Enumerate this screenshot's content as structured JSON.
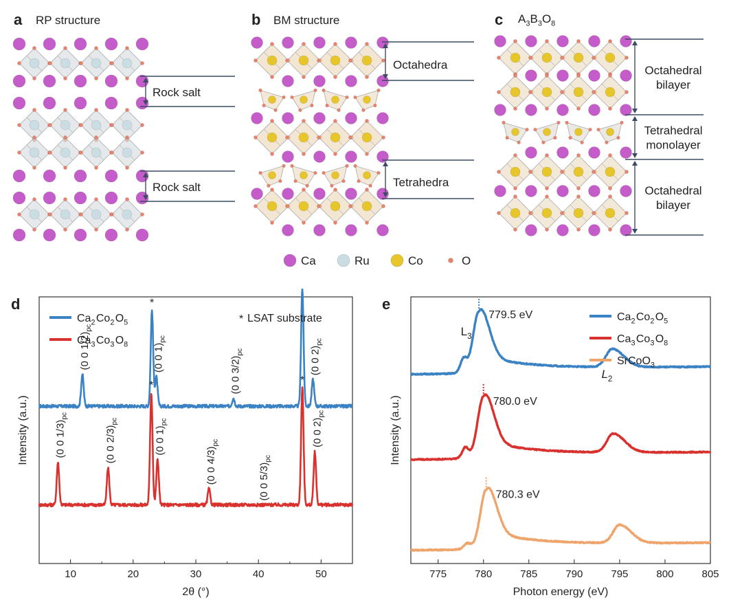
{
  "panels": {
    "a": {
      "label": "a",
      "title": "RP structure",
      "annotations": [
        "Rock salt",
        "Rock salt"
      ]
    },
    "b": {
      "label": "b",
      "title": "BM structure",
      "annotations": [
        "Octahedra",
        "Tetrahedra"
      ]
    },
    "c": {
      "label": "c",
      "title_parts": [
        "A",
        "3",
        "B",
        "3",
        "O",
        "8"
      ],
      "annotations": [
        [
          "Octahedral",
          "bilayer"
        ],
        [
          "Tetrahedral",
          "monolayer"
        ],
        [
          "Octahedral",
          "bilayer"
        ]
      ]
    },
    "d": {
      "label": "d"
    },
    "e": {
      "label": "e"
    }
  },
  "atom_legend": [
    {
      "name": "Ca",
      "color": "#c45dc9"
    },
    {
      "name": "Ru",
      "color": "#c9dde3"
    },
    {
      "name": "Co",
      "color": "#e7c62c"
    },
    {
      "name": "O",
      "color": "#e8836e"
    }
  ],
  "chart_data": [
    {
      "type": "line",
      "panel": "d",
      "xlabel": "2θ (°)",
      "ylabel": "Intensity (a.u.)",
      "xlim": [
        5,
        55
      ],
      "xticks": [
        10,
        20,
        30,
        40,
        50
      ],
      "legend": [
        {
          "name": [
            "Ca",
            "2",
            "Co",
            "2",
            "O",
            "5"
          ],
          "color": "#3b82c4"
        },
        {
          "name": [
            "Ca",
            "3",
            "Co",
            "3",
            "O",
            "8"
          ],
          "color": "#d9322e"
        }
      ],
      "legend_note": "LSAT substrate",
      "series": [
        {
          "name": "Ca2Co2O5",
          "color": "#3b82c4",
          "baseline": 0.59,
          "peaks": [
            [
              11.9,
              0.12
            ],
            [
              23.0,
              0.36
            ],
            [
              23.7,
              0.11
            ],
            [
              36.0,
              0.03
            ],
            [
              47.0,
              0.44
            ],
            [
              48.7,
              0.1
            ]
          ],
          "annotations": [
            {
              "x": 11.9,
              "text": [
                "(0 0 1/2)",
                "pc"
              ]
            },
            {
              "x": 23.7,
              "text": [
                "(0 0 1)",
                "pc"
              ]
            },
            {
              "x": 36.0,
              "text": [
                "(0 0 3/2)",
                "pc"
              ]
            },
            {
              "x": 48.7,
              "text": [
                "(0 0 2)",
                "pc"
              ]
            }
          ],
          "stars": [
            23.0,
            47.0
          ]
        },
        {
          "name": "Ca3Co3O8",
          "color": "#d9322e",
          "baseline": 0.22,
          "peaks": [
            [
              8.0,
              0.16
            ],
            [
              16.0,
              0.14
            ],
            [
              22.9,
              0.42
            ],
            [
              23.9,
              0.17
            ],
            [
              32.1,
              0.06
            ],
            [
              47.0,
              0.44
            ],
            [
              49.0,
              0.2
            ]
          ],
          "annotations": [
            {
              "x": 8.0,
              "text": [
                "(0 0 1/3)",
                "pc"
              ]
            },
            {
              "x": 16.0,
              "text": [
                "(0 0 2/3)",
                "pc"
              ]
            },
            {
              "x": 23.9,
              "text": [
                "(0 0 1)",
                "pc"
              ]
            },
            {
              "x": 32.1,
              "text": [
                "(0 0 4/3)",
                "pc"
              ]
            },
            {
              "x": 40.5,
              "text": [
                "(0 0 5/3)",
                "pc"
              ]
            },
            {
              "x": 49.0,
              "text": [
                "(0 0 2)",
                "pc"
              ]
            }
          ],
          "stars": [
            22.9,
            47.0
          ]
        }
      ]
    },
    {
      "type": "line",
      "panel": "e",
      "xlabel": "Photon energy (eV)",
      "ylabel": "Intensity (a.u.)",
      "xlim": [
        772,
        805
      ],
      "xticks": [
        775,
        780,
        785,
        790,
        795,
        800,
        805
      ],
      "edge_labels": [
        {
          "text": "L",
          "sub": "3",
          "x": 777.5,
          "italic": false
        },
        {
          "text": "L",
          "sub": "2",
          "x": 793.0,
          "italic": true
        }
      ],
      "legend": [
        {
          "name": [
            "Ca",
            "2",
            "Co",
            "2",
            "O",
            "5"
          ],
          "color": "#3b82c4"
        },
        {
          "name": [
            "Ca",
            "3",
            "Co",
            "3",
            "O",
            "8"
          ],
          "color": "#d9322e"
        },
        {
          "name": [
            "SrCoO",
            "3",
            "",
            "",
            "",
            ""
          ],
          "color": "#efa46b"
        }
      ],
      "series": [
        {
          "name": "Ca2Co2O5",
          "color": "#3b82c4",
          "baseline": 0.71,
          "tail": 0.72,
          "l3": 779.5,
          "l3_height": 0.22,
          "l2": 794.2,
          "l2_height": 0.068,
          "shoulder": [
            777.8,
            0.05
          ],
          "label": "779.5 eV"
        },
        {
          "name": "Ca3Co3O8",
          "color": "#d9322e",
          "baseline": 0.39,
          "tail": 0.4,
          "l3": 780.0,
          "l3_height": 0.22,
          "l2": 794.3,
          "l2_height": 0.07,
          "shoulder": [
            778.0,
            0.04
          ],
          "label": "780.0 eV"
        },
        {
          "name": "SrCoO3",
          "color": "#efa46b",
          "baseline": 0.05,
          "tail": 0.06,
          "l3": 780.3,
          "l3_height": 0.21,
          "l2": 795.0,
          "l2_height": 0.068,
          "shoulder": [
            778.2,
            0.02
          ],
          "label": "780.3 eV"
        }
      ]
    }
  ]
}
